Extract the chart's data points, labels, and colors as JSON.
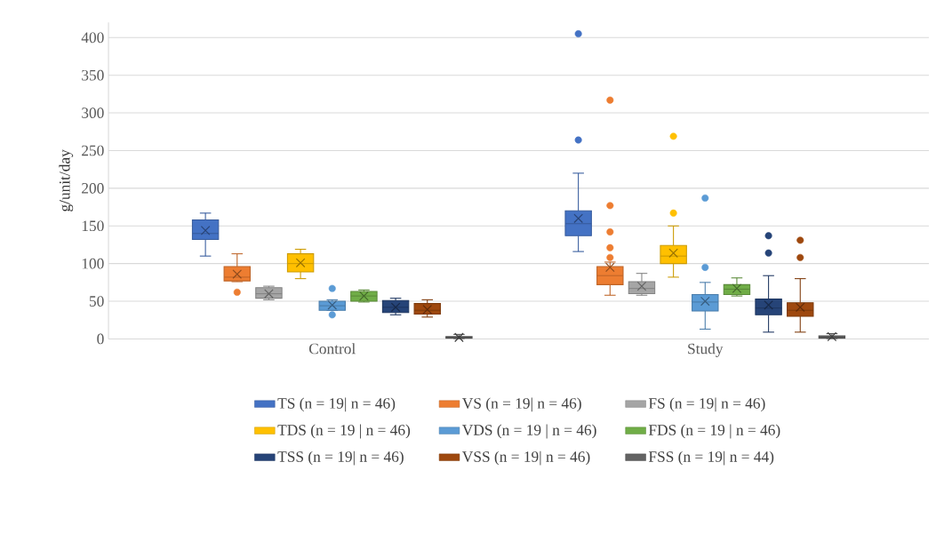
{
  "chart_data": {
    "type": "box",
    "ylabel": "g/unit/day",
    "categories": [
      "Control",
      "Study"
    ],
    "ylim": [
      0,
      420
    ],
    "yticks": [
      0,
      50,
      100,
      150,
      200,
      250,
      300,
      350,
      400
    ],
    "grid": "y",
    "legend": "bottom",
    "series": [
      {
        "name": "TS (n = 19| n = 46)",
        "color": "#4472c4",
        "boxes": [
          {
            "low": 110,
            "q1": 132,
            "median": 140,
            "q3": 158,
            "high": 167,
            "mean": 144
          },
          {
            "low": 116,
            "q1": 137,
            "median": 153,
            "q3": 170,
            "high": 220,
            "mean": 160,
            "outliers": [
              264,
              405
            ]
          }
        ]
      },
      {
        "name": "VS  (n = 19| n = 46)",
        "color": "#ed7d31",
        "boxes": [
          {
            "low": 76,
            "q1": 77,
            "median": 82,
            "q3": 96,
            "high": 113,
            "mean": 86,
            "outliers": [
              62
            ]
          },
          {
            "low": 58,
            "q1": 72,
            "median": 84,
            "q3": 96,
            "high": 102,
            "mean": 95,
            "outliers": [
              108,
              121,
              142,
              177,
              317
            ]
          }
        ]
      },
      {
        "name": "FS (n = 19| n = 46)",
        "color": "#a5a5a5",
        "boxes": [
          {
            "low": 52,
            "q1": 54,
            "median": 60,
            "q3": 68,
            "high": 70,
            "mean": 60
          },
          {
            "low": 58,
            "q1": 60,
            "median": 67,
            "q3": 76,
            "high": 87,
            "mean": 70
          }
        ]
      },
      {
        "name": "TDS (n = 19 | n = 46)",
        "color": "#ffc000",
        "boxes": [
          {
            "low": 80,
            "q1": 89,
            "median": 100,
            "q3": 113,
            "high": 119,
            "mean": 101
          },
          {
            "low": 82,
            "q1": 100,
            "median": 110,
            "q3": 124,
            "high": 150,
            "mean": 114,
            "outliers": [
              167,
              269
            ]
          }
        ]
      },
      {
        "name": "VDS (n = 19 | n = 46)",
        "color": "#5b9bd5",
        "boxes": [
          {
            "low": 38,
            "q1": 38,
            "median": 44,
            "q3": 50,
            "high": 52,
            "mean": 45,
            "outliers": [
              32,
              67
            ]
          },
          {
            "low": 13,
            "q1": 37,
            "median": 49,
            "q3": 59,
            "high": 75,
            "mean": 50,
            "outliers": [
              95,
              187
            ]
          }
        ]
      },
      {
        "name": "FDS (n = 19 | n = 46)",
        "color": "#70ad47",
        "boxes": [
          {
            "low": 49,
            "q1": 50,
            "median": 57,
            "q3": 63,
            "high": 65,
            "mean": 57
          },
          {
            "low": 57,
            "q1": 59,
            "median": 66,
            "q3": 72,
            "high": 81,
            "mean": 67
          }
        ]
      },
      {
        "name": "TSS (n = 19| n = 46)",
        "color": "#264478",
        "boxes": [
          {
            "low": 32,
            "q1": 35,
            "median": 42,
            "q3": 51,
            "high": 54,
            "mean": 42
          },
          {
            "low": 9,
            "q1": 32,
            "median": 41,
            "q3": 53,
            "high": 84,
            "mean": 45,
            "outliers": [
              114,
              137
            ]
          }
        ]
      },
      {
        "name": "VSS (n = 19| n = 46)",
        "color": "#9e480e",
        "boxes": [
          {
            "low": 29,
            "q1": 33,
            "median": 38,
            "q3": 47,
            "high": 52,
            "mean": 39
          },
          {
            "low": 9,
            "q1": 30,
            "median": 38,
            "q3": 48,
            "high": 80,
            "mean": 42,
            "outliers": [
              108,
              131
            ]
          }
        ]
      },
      {
        "name": "FSS (n = 19| n = 44)",
        "color": "#636363",
        "boxes": [
          {
            "low": 0,
            "q1": 1,
            "median": 2,
            "q3": 3,
            "high": 6,
            "mean": 2
          },
          {
            "low": 0,
            "q1": 1,
            "median": 2,
            "q3": 4,
            "high": 7,
            "mean": 3
          }
        ]
      }
    ]
  }
}
